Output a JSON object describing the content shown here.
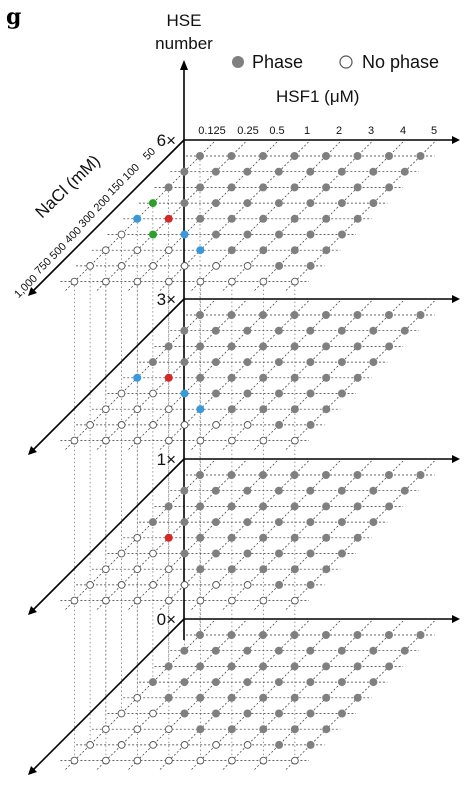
{
  "panel_label": "g",
  "legend": {
    "phase_label": "Phase",
    "no_phase_label": "No phase"
  },
  "chart_data": {
    "type": "scatter",
    "title": "",
    "z_axis": {
      "label_line1": "HSE",
      "label_line2": "number",
      "levels": [
        "0×",
        "1×",
        "3×",
        "6×"
      ]
    },
    "x_axis": {
      "label": "HSF1 (μM)",
      "ticks": [
        "0.125",
        "0.25",
        "0.5",
        "1",
        "2",
        "3",
        "4",
        "5"
      ]
    },
    "y_axis": {
      "label": "NaCl (mM)",
      "ticks": [
        "50",
        "100",
        "150",
        "200",
        "300",
        "400",
        "500",
        "750",
        "1,000"
      ]
    },
    "colors": {
      "phase": "#808080",
      "no_phase": "#ffffff",
      "red": "#d62728",
      "blue": "#3a9ad9",
      "green": "#2ca02c"
    },
    "grids": [
      {
        "hse": "6×",
        "rows": [
          "PPPPPPPP",
          "PPPPPPPP",
          "PPPPPPPP",
          "GPPPPPPP",
          "BRPPPPPP",
          "OGBPPPPP",
          "OOOBPPPP",
          "OOOOOOPP",
          "OOOOOOOO"
        ]
      },
      {
        "hse": "3×",
        "rows": [
          "PPPPPPPP",
          "PPPPPPPP",
          "PPPPPPPP",
          "PPPPPPPP",
          "BRPPPPPP",
          "OOBPPPPP",
          "OOOBPPPP",
          "OOOOOOPP",
          "OOOOOOOO"
        ]
      },
      {
        "hse": "1×",
        "rows": [
          "PPPPPPPP",
          "PPPPPPPP",
          "PPPPPPPP",
          "PPPPPPPP",
          "ORPPPPPP",
          "OOPPPPPP",
          "OOOPPPPP",
          "OOOOOOPP",
          "OOOOOOOO"
        ]
      },
      {
        "hse": "0×",
        "rows": [
          "PPPPPPPP",
          "PPPPPPPP",
          "PPPPPPPP",
          "PPPPPPPP",
          "OPPPPPPP",
          "OOPPPPPP",
          "OOOPPPPP",
          "OOOOOOPP",
          "OOOOOOOO"
        ]
      }
    ]
  }
}
